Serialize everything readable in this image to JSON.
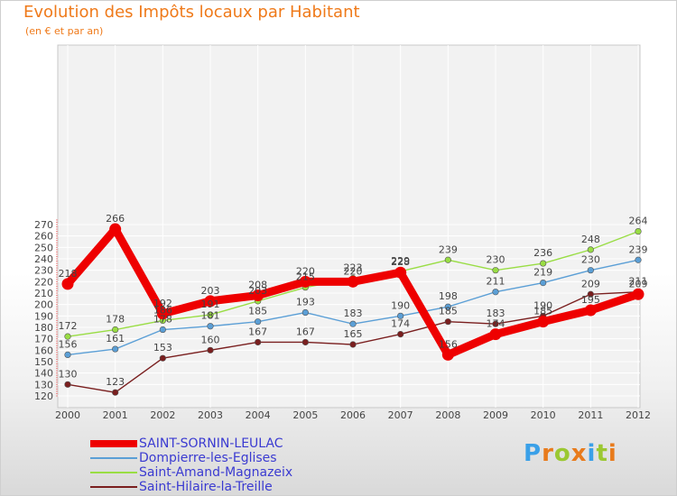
{
  "chart_data": {
    "type": "line",
    "title": "Evolution des Impôts locaux par Habitant",
    "subtitle": "(en € et par an)",
    "xlabel": "",
    "ylabel": "",
    "categories": [
      "2000",
      "2001",
      "2002",
      "2003",
      "2004",
      "2005",
      "2006",
      "2007",
      "2008",
      "2009",
      "2010",
      "2011",
      "2012"
    ],
    "ylim": [
      120,
      275
    ],
    "yticks": [
      "120",
      "130",
      "140",
      "150",
      "160",
      "170",
      "180",
      "190",
      "200",
      "210",
      "220",
      "230",
      "240",
      "250",
      "260",
      "270"
    ],
    "grid": true,
    "legend_position": "bottom-left",
    "series": [
      {
        "name": "SAINT-SORNIN-LEULAC",
        "color": "#ee0000",
        "values": [
          218,
          266,
          192,
          203,
          208,
          220,
          220,
          228,
          156,
          174,
          185,
          195,
          209
        ],
        "labels": [
          "218",
          "266",
          "192",
          "203",
          "208",
          "220",
          "220",
          "228",
          "156",
          "174",
          "185",
          "195",
          "209"
        ]
      },
      {
        "name": "Dompierre-les-Eglises",
        "color": "#5b9fd6",
        "values": [
          156,
          161,
          178,
          181,
          185,
          193,
          183,
          190,
          198,
          211,
          219,
          230,
          239
        ],
        "labels": [
          "156",
          "161",
          "178",
          "181",
          "185",
          "193",
          "183",
          "190",
          "198",
          "211",
          "219",
          "230",
          "239"
        ]
      },
      {
        "name": "Saint-Amand-Magnazeix",
        "color": "#99dd44",
        "values": [
          172,
          178,
          186,
          191,
          203,
          215,
          223,
          229,
          239,
          230,
          236,
          248,
          264
        ],
        "labels": [
          "172",
          "178",
          "186",
          "191",
          "203",
          "215",
          "223",
          "229",
          "239",
          "230",
          "236",
          "248",
          "264"
        ]
      },
      {
        "name": "Saint-Hilaire-la-Treille",
        "color": "#7a1f1f",
        "values": [
          130,
          123,
          153,
          160,
          167,
          167,
          165,
          174,
          185,
          183,
          190,
          209,
          211
        ],
        "labels": [
          "130",
          "123",
          "153",
          "160",
          "167",
          "167",
          "165",
          "174",
          "185",
          "183",
          "190",
          "209",
          "211"
        ]
      }
    ]
  },
  "branding": {
    "logo_letters": [
      "P",
      "r",
      "o",
      "x",
      "i",
      "t",
      "i"
    ],
    "logo_colors": [
      "#3aa0e8",
      "#e87b1c",
      "#9bc832",
      "#e87b1c",
      "#3aa0e8",
      "#9bc832",
      "#e87b1c"
    ]
  }
}
